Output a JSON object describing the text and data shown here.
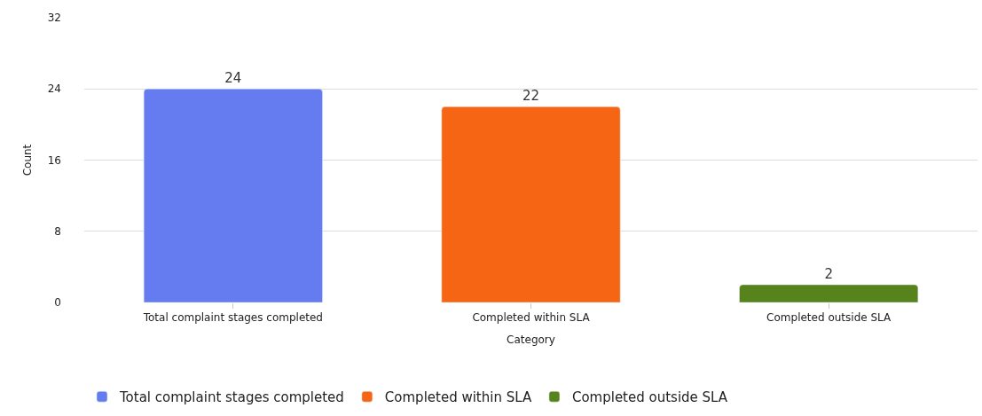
{
  "chart_data": {
    "type": "bar",
    "xlabel": "Category",
    "ylabel": "Count",
    "categories": [
      "Total complaint stages completed",
      "Completed within SLA",
      "Completed outside SLA"
    ],
    "series": [
      {
        "name": "Total complaint stages completed",
        "color": "#647cf0",
        "values": [
          24,
          null,
          null
        ]
      },
      {
        "name": "Completed within SLA",
        "color": "#f66513",
        "values": [
          null,
          22,
          null
        ]
      },
      {
        "name": "Completed outside SLA",
        "color": "#57831c",
        "values": [
          null,
          null,
          2
        ]
      }
    ],
    "ylim": [
      0,
      32
    ],
    "yticks": [
      0,
      8,
      16,
      24,
      32
    ],
    "grid": "y",
    "legend": "bottom left",
    "data_labels": true
  }
}
